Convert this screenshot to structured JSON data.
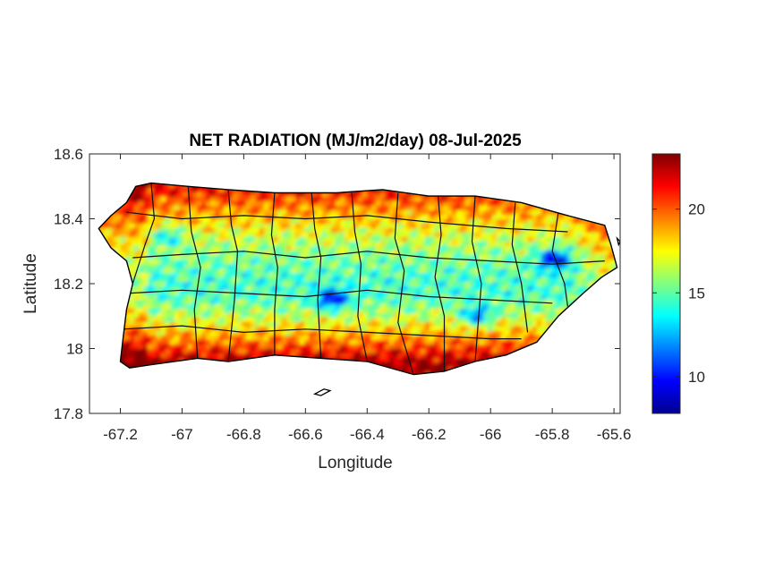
{
  "chart_data": {
    "type": "heatmap",
    "title": "NET RADIATION (MJ/m2/day) 08-Jul-2025",
    "xlabel": "Longitude",
    "ylabel": "Latitude",
    "xlim": [
      -67.3,
      -65.58
    ],
    "ylim": [
      17.8,
      18.6
    ],
    "xticks": [
      -67.2,
      -67,
      -66.8,
      -66.6,
      -66.4,
      -66.2,
      -66,
      -65.8,
      -65.6
    ],
    "xtick_labels": [
      "-67.2",
      "-67",
      "-66.8",
      "-66.6",
      "-66.4",
      "-66.2",
      "-66",
      "-65.8",
      "-65.6"
    ],
    "yticks": [
      17.8,
      18,
      18.2,
      18.4,
      18.6
    ],
    "ytick_labels": [
      "17.8",
      "18",
      "18.2",
      "18.4",
      "18.6"
    ],
    "colorbar": {
      "colormap": "jet",
      "range": [
        7.8,
        23.3
      ],
      "ticks": [
        10,
        15,
        20
      ],
      "tick_labels": [
        "10",
        "15",
        "20"
      ]
    },
    "grid": false,
    "box": true,
    "coastline": [
      [
        -67.27,
        18.37
      ],
      [
        -67.23,
        18.41
      ],
      [
        -67.18,
        18.45
      ],
      [
        -67.15,
        18.5
      ],
      [
        -67.1,
        18.51
      ],
      [
        -66.98,
        18.5
      ],
      [
        -66.85,
        18.49
      ],
      [
        -66.7,
        18.48
      ],
      [
        -66.5,
        18.48
      ],
      [
        -66.35,
        18.49
      ],
      [
        -66.2,
        18.47
      ],
      [
        -66.05,
        18.47
      ],
      [
        -65.9,
        18.45
      ],
      [
        -65.75,
        18.41
      ],
      [
        -65.63,
        18.38
      ],
      [
        -65.61,
        18.32
      ],
      [
        -65.59,
        18.25
      ],
      [
        -65.64,
        18.22
      ],
      [
        -65.7,
        18.17
      ],
      [
        -65.78,
        18.1
      ],
      [
        -65.85,
        18.02
      ],
      [
        -65.95,
        17.98
      ],
      [
        -66.05,
        17.96
      ],
      [
        -66.15,
        17.93
      ],
      [
        -66.25,
        17.92
      ],
      [
        -66.4,
        17.96
      ],
      [
        -66.55,
        17.97
      ],
      [
        -66.7,
        17.98
      ],
      [
        -66.85,
        17.96
      ],
      [
        -66.95,
        17.97
      ],
      [
        -67.1,
        17.95
      ],
      [
        -67.17,
        17.94
      ],
      [
        -67.2,
        17.96
      ],
      [
        -67.19,
        18.04
      ],
      [
        -67.18,
        18.12
      ],
      [
        -67.16,
        18.2
      ],
      [
        -67.18,
        18.27
      ],
      [
        -67.23,
        18.31
      ]
    ],
    "municipal_boundaries": [
      [
        [
          -67.1,
          18.51
        ],
        [
          -67.09,
          18.4
        ],
        [
          -67.12,
          18.32
        ],
        [
          -67.16,
          18.2
        ]
      ],
      [
        [
          -66.98,
          18.5
        ],
        [
          -66.97,
          18.36
        ],
        [
          -66.94,
          18.25
        ],
        [
          -66.96,
          18.12
        ],
        [
          -66.95,
          17.97
        ]
      ],
      [
        [
          -66.85,
          18.49
        ],
        [
          -66.84,
          18.38
        ],
        [
          -66.82,
          18.3
        ],
        [
          -66.83,
          18.15
        ],
        [
          -66.85,
          17.96
        ]
      ],
      [
        [
          -66.7,
          18.48
        ],
        [
          -66.71,
          18.35
        ],
        [
          -66.69,
          18.25
        ],
        [
          -66.7,
          18.12
        ],
        [
          -66.7,
          17.98
        ]
      ],
      [
        [
          -66.58,
          18.48
        ],
        [
          -66.57,
          18.37
        ],
        [
          -66.55,
          18.28
        ],
        [
          -66.56,
          18.15
        ],
        [
          -66.55,
          17.97
        ]
      ],
      [
        [
          -66.45,
          18.48
        ],
        [
          -66.44,
          18.36
        ],
        [
          -66.42,
          18.26
        ],
        [
          -66.43,
          18.1
        ],
        [
          -66.4,
          17.96
        ]
      ],
      [
        [
          -66.3,
          18.48
        ],
        [
          -66.31,
          18.34
        ],
        [
          -66.28,
          18.24
        ],
        [
          -66.3,
          18.08
        ],
        [
          -66.25,
          17.92
        ]
      ],
      [
        [
          -66.17,
          18.47
        ],
        [
          -66.16,
          18.35
        ],
        [
          -66.18,
          18.22
        ],
        [
          -66.15,
          18.1
        ],
        [
          -66.15,
          17.93
        ]
      ],
      [
        [
          -66.05,
          18.47
        ],
        [
          -66.06,
          18.33
        ],
        [
          -66.03,
          18.2
        ],
        [
          -66.04,
          18.08
        ],
        [
          -66.05,
          17.96
        ]
      ],
      [
        [
          -65.92,
          18.45
        ],
        [
          -65.93,
          18.32
        ],
        [
          -65.9,
          18.2
        ],
        [
          -65.88,
          18.05
        ]
      ],
      [
        [
          -65.78,
          18.42
        ],
        [
          -65.8,
          18.3
        ],
        [
          -65.76,
          18.2
        ],
        [
          -65.75,
          18.13
        ]
      ],
      [
        [
          -67.18,
          18.42
        ],
        [
          -67.0,
          18.4
        ],
        [
          -66.8,
          18.41
        ],
        [
          -66.6,
          18.4
        ],
        [
          -66.4,
          18.41
        ],
        [
          -66.2,
          18.39
        ],
        [
          -65.95,
          18.37
        ],
        [
          -65.75,
          18.36
        ]
      ],
      [
        [
          -67.16,
          18.28
        ],
        [
          -67.0,
          18.29
        ],
        [
          -66.8,
          18.3
        ],
        [
          -66.6,
          18.28
        ],
        [
          -66.4,
          18.3
        ],
        [
          -66.2,
          18.28
        ],
        [
          -66.0,
          18.27
        ],
        [
          -65.8,
          18.26
        ],
        [
          -65.63,
          18.27
        ]
      ],
      [
        [
          -67.18,
          18.17
        ],
        [
          -67.0,
          18.18
        ],
        [
          -66.8,
          18.17
        ],
        [
          -66.6,
          18.16
        ],
        [
          -66.4,
          18.18
        ],
        [
          -66.2,
          18.16
        ],
        [
          -66.0,
          18.15
        ],
        [
          -65.8,
          18.14
        ]
      ],
      [
        [
          -67.19,
          18.06
        ],
        [
          -67.0,
          18.07
        ],
        [
          -66.8,
          18.05
        ],
        [
          -66.6,
          18.06
        ],
        [
          -66.4,
          18.05
        ],
        [
          -66.2,
          18.04
        ],
        [
          -66.0,
          18.03
        ],
        [
          -65.9,
          18.03
        ]
      ]
    ],
    "islets": [
      [
        [
          -66.57,
          17.86
        ],
        [
          -66.54,
          17.875
        ],
        [
          -66.52,
          17.87
        ],
        [
          -66.55,
          17.855
        ]
      ],
      [
        [
          -65.59,
          18.34
        ],
        [
          -65.58,
          18.33
        ],
        [
          -65.585,
          18.32
        ]
      ]
    ],
    "field_model": {
      "base": 18.5,
      "north_coast_peak": 21.5,
      "south_coast_peak": 23.0,
      "interior_low": 14.5,
      "low_spots": [
        {
          "lon": -66.52,
          "lat": 18.16,
          "value": 9.5
        },
        {
          "lon": -65.8,
          "lat": 18.28,
          "value": 9.0
        },
        {
          "lon": -66.05,
          "lat": 18.11,
          "value": 11.5
        },
        {
          "lon": -67.05,
          "lat": 18.35,
          "value": 13.5
        }
      ]
    }
  }
}
